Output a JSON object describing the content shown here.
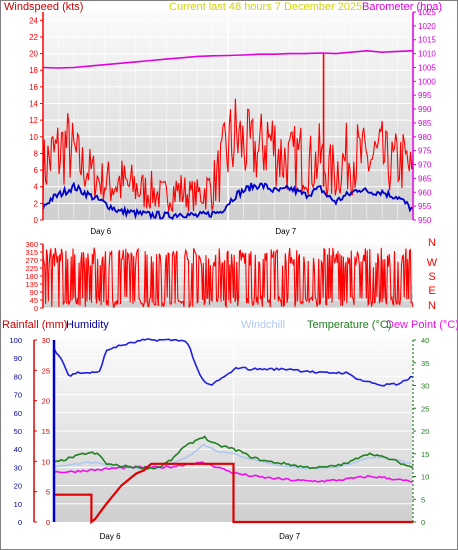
{
  "colors": {
    "wind": "#ff0000",
    "avg_wind": "#0000cc",
    "baro": "#e000e0",
    "title": "#d4d400",
    "rain": "#dd0000",
    "humidity": "#2020dd",
    "humidity_axis": "#000099",
    "windchill": "#b0c8f0",
    "temperature": "#208020",
    "dewpoint": "#ee10ee",
    "direction": "#ff0000"
  },
  "chart_data": [
    {
      "type": "line",
      "panel": "wind-baro",
      "title": "Current last 48 hours 7 December 2025",
      "ylabel_left": "Windspeed (kts)",
      "ylabel_right": "Barometer (hpa)",
      "ylim_left": [
        0,
        25
      ],
      "ylim_right": [
        950,
        1025
      ],
      "yticks_left": [
        "0",
        "2",
        "4",
        "6",
        "8",
        "10",
        "12",
        "14",
        "16",
        "18",
        "20",
        "22",
        "24"
      ],
      "yticks_right": [
        "950",
        "955",
        "960",
        "965",
        "970",
        "975",
        "980",
        "985",
        "990",
        "995",
        "1000",
        "1005",
        "1010",
        "1015",
        "1020",
        "1025"
      ],
      "xlim_hours": [
        0,
        48
      ],
      "day_labels": [
        {
          "label": "Day 6",
          "hour": 7.5
        },
        {
          "label": "Day 7",
          "hour": 31.5
        }
      ],
      "day_lines": [
        0,
        24,
        48
      ],
      "series": [
        {
          "key": "gust",
          "x": [
            0,
            1,
            2,
            3,
            4,
            5,
            6,
            7,
            8,
            9,
            10,
            11,
            12,
            13,
            14,
            15,
            16,
            17,
            18,
            19,
            20,
            21,
            22,
            23,
            24,
            25,
            26,
            27,
            28,
            29,
            30,
            31,
            32,
            33,
            34,
            35,
            36,
            37,
            38,
            39,
            40,
            41,
            42,
            43,
            44,
            45,
            46,
            47,
            48
          ],
          "lo": [
            2,
            3,
            3,
            4,
            4,
            3,
            3,
            2,
            2,
            1,
            1,
            1,
            1,
            1,
            1,
            1,
            1,
            1,
            1,
            1,
            1,
            1,
            1,
            2,
            3,
            4,
            4,
            4,
            4,
            4,
            4,
            3,
            3,
            3,
            3,
            3,
            3,
            2,
            2,
            3,
            3,
            3,
            3,
            3,
            3,
            3,
            3,
            3,
            3
          ],
          "hi": [
            10,
            12,
            13,
            14,
            12,
            10,
            9,
            8,
            7,
            8,
            8,
            7,
            7,
            6,
            6,
            5,
            5,
            6,
            6,
            5,
            5,
            6,
            7,
            10,
            14,
            16,
            14,
            13,
            12,
            16,
            14,
            12,
            11,
            12,
            12,
            10,
            12,
            9,
            10,
            11,
            13,
            12,
            11,
            12,
            12,
            10,
            11,
            11,
            8
          ]
        },
        {
          "key": "avg",
          "x": [
            0,
            1,
            2,
            3,
            4,
            5,
            6,
            7,
            8,
            9,
            10,
            11,
            12,
            13,
            14,
            15,
            16,
            17,
            18,
            19,
            20,
            21,
            22,
            23,
            24,
            25,
            26,
            27,
            28,
            29,
            30,
            31,
            32,
            33,
            34,
            35,
            36,
            37,
            38,
            39,
            40,
            41,
            42,
            43,
            44,
            45,
            46,
            47,
            48
          ],
          "values": [
            1.5,
            2.5,
            3,
            3.5,
            4,
            3.5,
            3,
            2.5,
            2,
            1.5,
            1,
            1,
            0.8,
            0.7,
            0.6,
            0.6,
            0.5,
            0.6,
            0.8,
            0.6,
            0.5,
            0.6,
            0.8,
            1,
            2,
            3,
            3.5,
            4,
            4.2,
            4,
            3.5,
            3.5,
            3.8,
            3.4,
            3,
            3.4,
            3.8,
            2.8,
            2.2,
            2.8,
            3.2,
            3.8,
            3.4,
            3.4,
            3.4,
            3,
            2.8,
            2,
            1.2
          ]
        },
        {
          "key": "baro",
          "name_axis": "right",
          "x": [
            0,
            2,
            4,
            6,
            8,
            10,
            12,
            14,
            16,
            18,
            20,
            22,
            24,
            26,
            28,
            30,
            32,
            34,
            36,
            38,
            40,
            42,
            44,
            46,
            48
          ],
          "values": [
            1005,
            1004.8,
            1005,
            1005.5,
            1006,
            1006.5,
            1007,
            1007.5,
            1008,
            1008.5,
            1009,
            1009.2,
            1009.3,
            1009.5,
            1009.8,
            1009.8,
            1010,
            1010,
            1010.2,
            1010,
            1010.5,
            1011,
            1010.5,
            1010.8,
            1011
          ]
        }
      ],
      "annotations": [
        {
          "type": "spike",
          "x": 36.4,
          "value": 20
        }
      ]
    },
    {
      "type": "line",
      "panel": "wind-direction",
      "ylim": [
        0,
        360
      ],
      "yticks": [
        "0",
        "45",
        "90",
        "135",
        "180",
        "225",
        "270",
        "315",
        "360"
      ],
      "compass_labels": [
        "N",
        "W",
        "S",
        "E",
        "N"
      ],
      "series": [
        {
          "key": "direction",
          "note": "rapidly oscillating direction between roughly 0 and 340 degrees over 48 hours"
        }
      ]
    },
    {
      "type": "line",
      "panel": "temperature",
      "ylabel_left_rain": "Rainfall (mm)",
      "ylabel_left_humidity": "Humidity",
      "legend": [
        "Windchill",
        "Temperature (°C)",
        "Dew Point (°C)"
      ],
      "ylim_rain": [
        0,
        30
      ],
      "yticks_rain": [
        "0",
        "5",
        "10",
        "15",
        "20",
        "25",
        "30"
      ],
      "ylim_humidity": [
        0,
        100
      ],
      "yticks_humidity": [
        "0",
        "10",
        "20",
        "30",
        "40",
        "50",
        "60",
        "70",
        "80",
        "90",
        "100"
      ],
      "ylim_temp": [
        0,
        40
      ],
      "yticks_temp": [
        "0",
        "5",
        "10",
        "15",
        "20",
        "25",
        "30",
        "35",
        "40"
      ],
      "day_labels": [
        {
          "label": "Day 6",
          "hour": 7.5
        },
        {
          "label": "Day 7",
          "hour": 31.5
        }
      ],
      "series": [
        {
          "key": "humidity",
          "x": [
            0,
            1,
            2,
            3,
            4,
            5,
            6,
            7,
            8,
            9,
            10,
            11,
            12,
            13,
            14,
            15,
            16,
            17,
            18,
            19,
            20,
            21,
            22,
            23,
            24,
            25,
            26,
            27,
            28,
            29,
            30,
            31,
            32,
            33,
            34,
            35,
            36,
            37,
            38,
            39,
            40,
            41,
            42,
            43,
            44,
            45,
            46,
            47,
            48
          ],
          "values": [
            95,
            90,
            80,
            82,
            82,
            82,
            82,
            94,
            96,
            97,
            98,
            99,
            100,
            100,
            100,
            100,
            100,
            100,
            98,
            85,
            77,
            75,
            78,
            80,
            84,
            85,
            84,
            84,
            84,
            84,
            84,
            84,
            84,
            83,
            83,
            82,
            82,
            82,
            82,
            82,
            80,
            78,
            77,
            76,
            75,
            76,
            75,
            78,
            80
          ]
        },
        {
          "key": "temperature",
          "x": [
            0,
            1,
            2,
            3,
            4,
            5,
            6,
            7,
            8,
            9,
            10,
            11,
            12,
            13,
            14,
            15,
            16,
            17,
            18,
            19,
            20,
            21,
            22,
            23,
            24,
            25,
            26,
            27,
            28,
            29,
            30,
            31,
            32,
            33,
            34,
            35,
            36,
            37,
            38,
            39,
            40,
            41,
            42,
            43,
            44,
            45,
            46,
            47,
            48
          ],
          "values": [
            13,
            13.5,
            14,
            14.5,
            15,
            15.2,
            14.8,
            12.8,
            12.5,
            12.3,
            12.2,
            12,
            12,
            11.8,
            12,
            13,
            14,
            16,
            17,
            18,
            18.8,
            17.5,
            16.8,
            16.5,
            16,
            15.5,
            14.5,
            14,
            13.5,
            13.2,
            13,
            12.8,
            12.5,
            12.2,
            12,
            12,
            12,
            12.2,
            12.5,
            12.8,
            13.5,
            14.5,
            15,
            14.8,
            14.2,
            13.8,
            13.2,
            12.5,
            12
          ]
        },
        {
          "key": "windchill",
          "x": [
            0,
            2,
            4,
            6,
            8,
            10,
            12,
            14,
            16,
            18,
            20,
            22,
            24,
            26,
            28,
            30,
            32,
            34,
            36,
            38,
            40,
            42,
            44,
            46,
            48
          ],
          "values": [
            12,
            12.5,
            13,
            13,
            12,
            12,
            11.8,
            12,
            13,
            14.5,
            17,
            15.5,
            15,
            14,
            13.2,
            12.5,
            12,
            11.8,
            11.8,
            12,
            13,
            14.2,
            14.2,
            13.5,
            12.8
          ]
        },
        {
          "key": "dewpoint",
          "x": [
            0,
            2,
            4,
            6,
            8,
            10,
            12,
            14,
            16,
            18,
            20,
            22,
            24,
            26,
            28,
            30,
            32,
            34,
            36,
            38,
            40,
            42,
            44,
            46,
            48
          ],
          "values": [
            11,
            11,
            11.3,
            11.5,
            11.8,
            12,
            12,
            12,
            12.2,
            12.8,
            13,
            12,
            10.8,
            10.2,
            9.8,
            9.5,
            9.2,
            9,
            9,
            9.2,
            9.6,
            10,
            9.8,
            9.3,
            8.8
          ]
        },
        {
          "key": "rainfall",
          "x": [
            0,
            5,
            5,
            5.5,
            7,
            9,
            10,
            11,
            12,
            13,
            14,
            24,
            24,
            48
          ],
          "values": [
            4.5,
            4.5,
            0,
            0.5,
            3,
            6,
            7,
            8,
            8.5,
            9.6,
            9.6,
            9.6,
            0,
            0
          ]
        }
      ]
    }
  ]
}
